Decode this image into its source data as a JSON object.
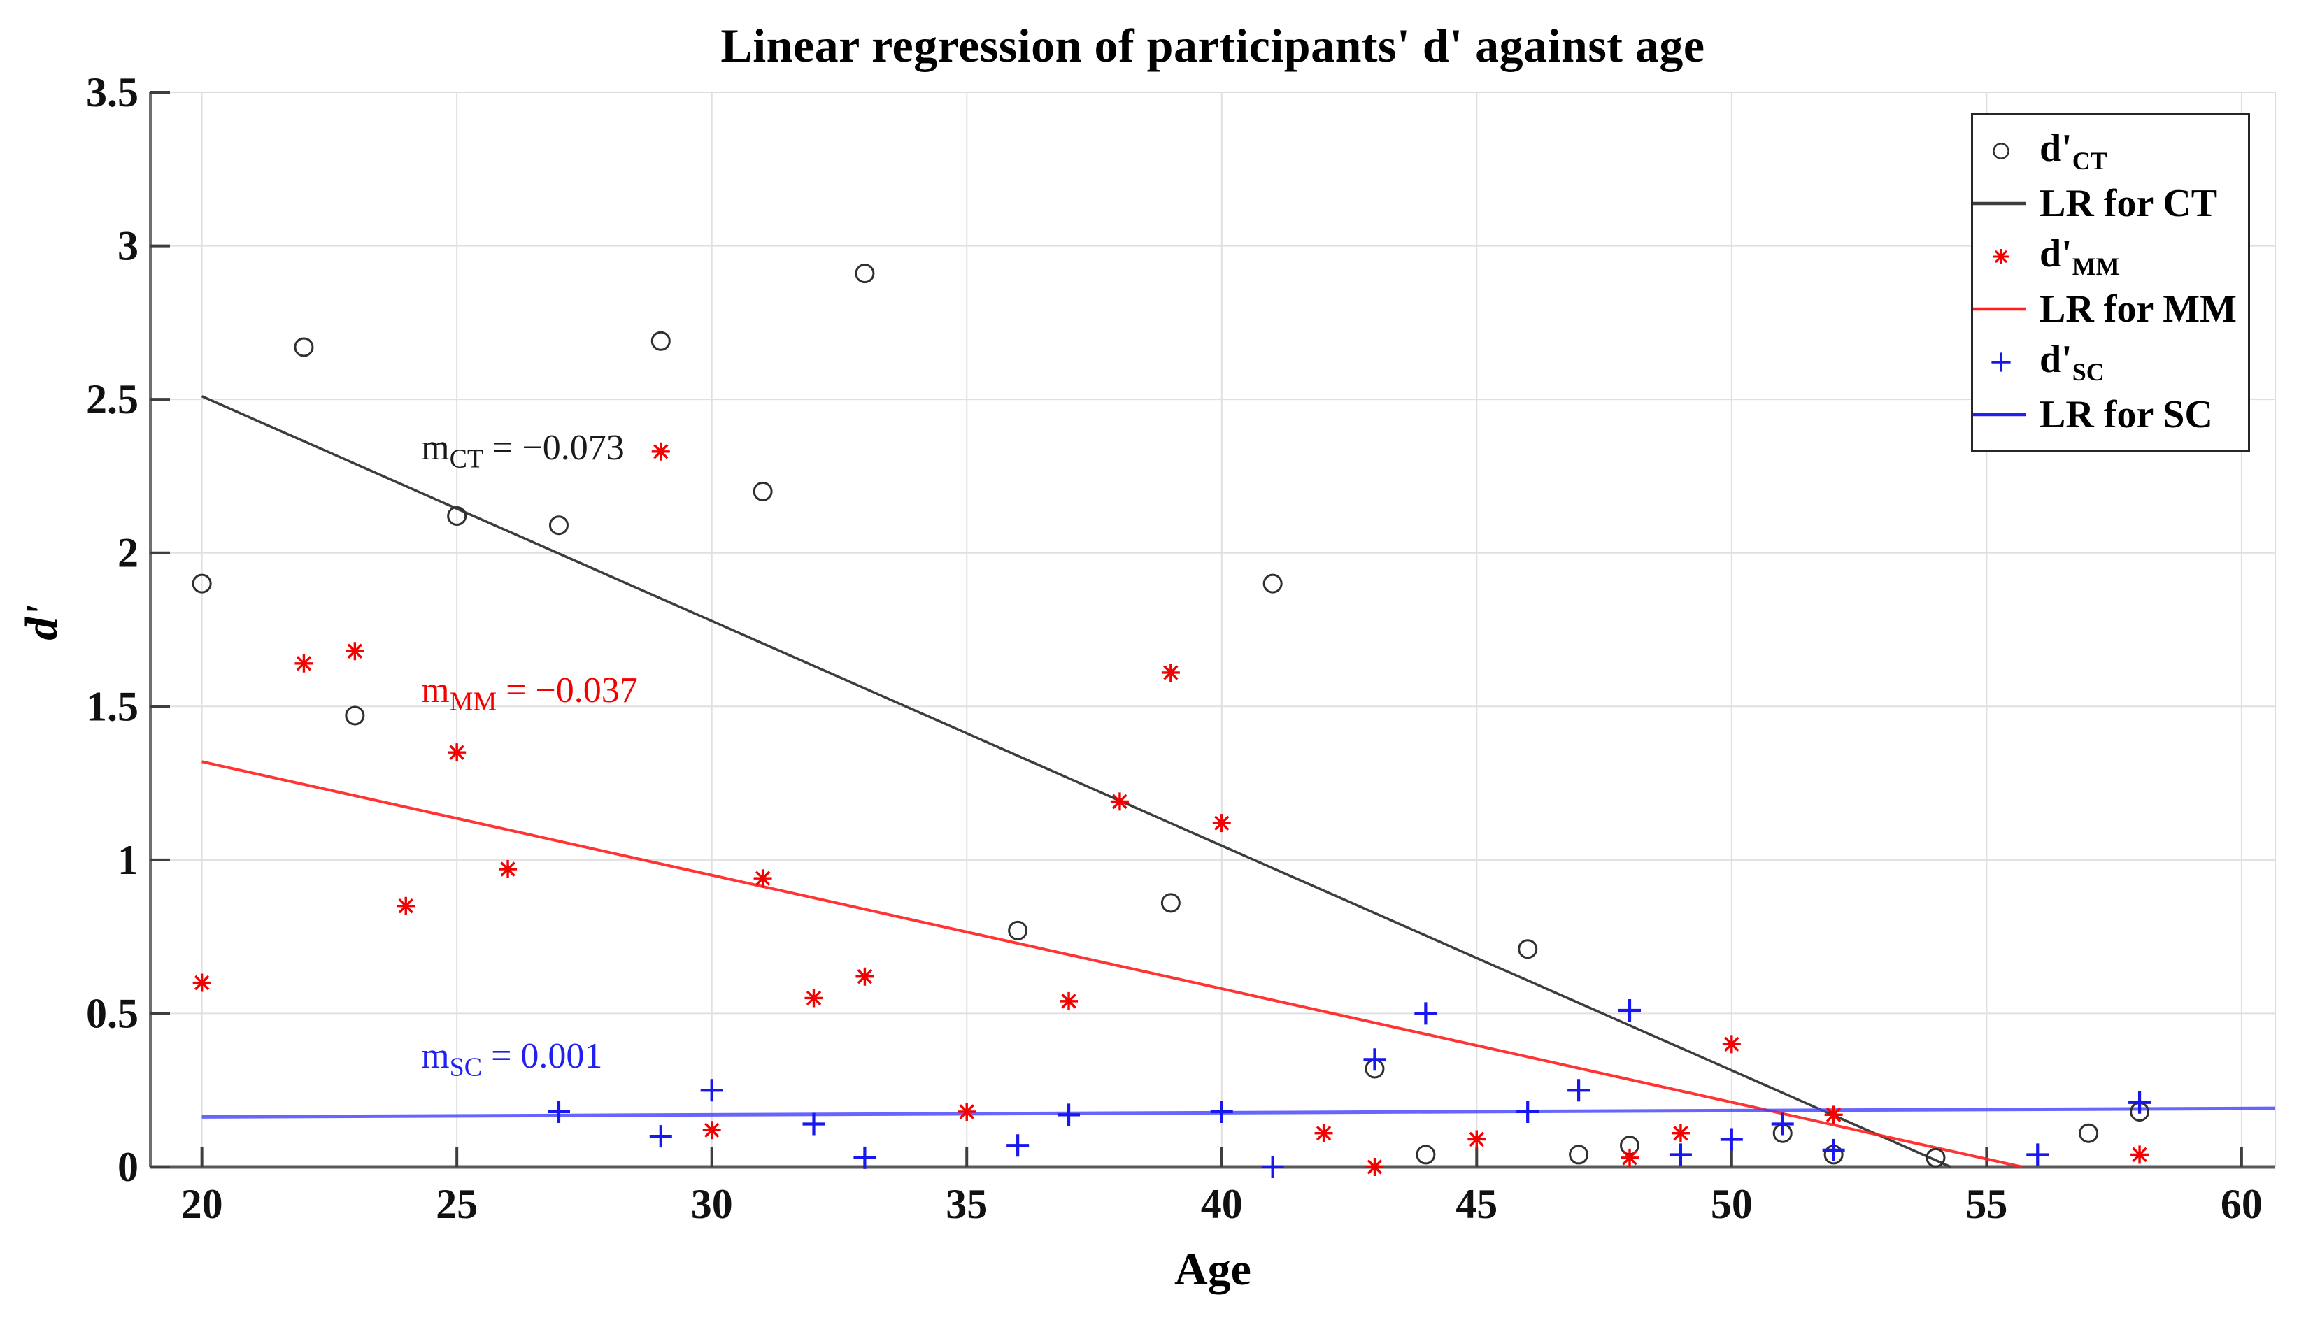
{
  "chart_data": {
    "type": "scatter",
    "title": "Linear regression of participants' d' against age",
    "xlabel": "Age",
    "ylabel": "d'",
    "xlim": [
      18.99,
      60.66
    ],
    "ylim": [
      0,
      3.5
    ],
    "x_ticks": [
      "20",
      "25",
      "30",
      "35",
      "40",
      "45",
      "50",
      "55",
      "60"
    ],
    "y_ticks": [
      "0",
      "0.5",
      "1",
      "1.5",
      "2",
      "2.5",
      "3",
      "3.5"
    ],
    "grid": true,
    "grid_color": "#e0e0e0",
    "axis_color": "#5a5a5a",
    "series": [
      {
        "name": "d'_CT",
        "marker": "circle",
        "color": "#2f2f2f",
        "points": [
          [
            20,
            1.9
          ],
          [
            22,
            2.67
          ],
          [
            23,
            1.47
          ],
          [
            25,
            2.12
          ],
          [
            27,
            2.09
          ],
          [
            29,
            2.69
          ],
          [
            31,
            2.2
          ],
          [
            33,
            2.91
          ],
          [
            36,
            0.77
          ],
          [
            39,
            0.86
          ],
          [
            41,
            1.9
          ],
          [
            43,
            0.32
          ],
          [
            44,
            0.04
          ],
          [
            46,
            0.71
          ],
          [
            47,
            0.04
          ],
          [
            48,
            0.07
          ],
          [
            51,
            0.11
          ],
          [
            52,
            0.04
          ],
          [
            54,
            0.03
          ],
          [
            57,
            0.11
          ],
          [
            58,
            0.18
          ]
        ]
      },
      {
        "name": "d'_MM",
        "marker": "asterisk",
        "color": "#f50000",
        "points": [
          [
            20,
            0.6
          ],
          [
            22,
            1.64
          ],
          [
            23,
            1.68
          ],
          [
            24,
            0.85
          ],
          [
            25,
            1.35
          ],
          [
            26,
            0.97
          ],
          [
            29,
            2.33
          ],
          [
            30,
            0.12
          ],
          [
            31,
            0.94
          ],
          [
            32,
            0.55
          ],
          [
            33,
            0.62
          ],
          [
            35,
            0.18
          ],
          [
            37,
            0.54
          ],
          [
            38,
            1.19
          ],
          [
            39,
            1.61
          ],
          [
            40,
            1.12
          ],
          [
            42,
            0.11
          ],
          [
            43,
            0.0
          ],
          [
            45,
            0.09
          ],
          [
            48,
            0.03
          ],
          [
            49,
            0.11
          ],
          [
            50,
            0.4
          ],
          [
            52,
            0.17
          ],
          [
            58,
            0.04
          ]
        ]
      },
      {
        "name": "d'_SC",
        "marker": "plus",
        "color": "#1717ee",
        "points": [
          [
            27,
            0.18
          ],
          [
            29,
            0.1
          ],
          [
            30,
            0.25
          ],
          [
            32,
            0.14
          ],
          [
            33,
            0.03
          ],
          [
            36,
            0.07
          ],
          [
            37,
            0.17
          ],
          [
            40,
            0.18
          ],
          [
            41,
            0.0
          ],
          [
            43,
            0.35
          ],
          [
            44,
            0.5
          ],
          [
            46,
            0.18
          ],
          [
            47,
            0.25
          ],
          [
            48,
            0.51
          ],
          [
            49,
            0.04
          ],
          [
            50,
            0.09
          ],
          [
            51,
            0.14
          ],
          [
            52,
            0.055
          ],
          [
            56,
            0.04
          ],
          [
            58,
            0.21
          ]
        ]
      }
    ],
    "regression_lines": [
      {
        "name": "LR for CT",
        "color": "#3d3d3d",
        "width": 3.5,
        "opacity": 1,
        "slope": -0.073,
        "x1": 20,
        "y1": 2.51,
        "x2": 54.3,
        "y2": 0
      },
      {
        "name": "LR for MM",
        "color": "#ff1e1e",
        "width": 4,
        "opacity": 0.9,
        "slope": -0.037,
        "x1": 20,
        "y1": 1.32,
        "x2": 55.7,
        "y2": 0
      },
      {
        "name": "LR for SC",
        "color": "#4040ff",
        "width": 5,
        "opacity": 0.8,
        "slope": 0.001,
        "x1": 20,
        "y1": 0.163,
        "x2": 60.66,
        "y2": 0.191
      }
    ],
    "annotations": [
      {
        "prefix": "m",
        "sub": "CT",
        "rest": " = −0.073",
        "color": "#1a1a1a",
        "x": 24.3,
        "y": 2.34
      },
      {
        "prefix": "m",
        "sub": "MM",
        "rest": " = −0.037",
        "color": "#f50000",
        "x": 24.3,
        "y": 1.55
      },
      {
        "prefix": "m",
        "sub": "SC",
        "rest": " = 0.001",
        "color": "#2020f0",
        "x": 24.3,
        "y": 0.36
      }
    ],
    "legend": {
      "position": "top-right",
      "border_color": "#262626",
      "entries": [
        {
          "type": "marker",
          "marker": "circle",
          "color": "#2f2f2f",
          "main": "d'",
          "sub": "CT"
        },
        {
          "type": "line",
          "color": "#3d3d3d",
          "label": "LR for CT"
        },
        {
          "type": "marker",
          "marker": "asterisk",
          "color": "#f50000",
          "main": "d'",
          "sub": "MM"
        },
        {
          "type": "line",
          "color": "#ff1e1e",
          "label": "LR for MM"
        },
        {
          "type": "marker",
          "marker": "plus",
          "color": "#1717ee",
          "main": "d'",
          "sub": "SC"
        },
        {
          "type": "line",
          "color": "#2020f0",
          "label": "LR for SC"
        }
      ]
    }
  }
}
